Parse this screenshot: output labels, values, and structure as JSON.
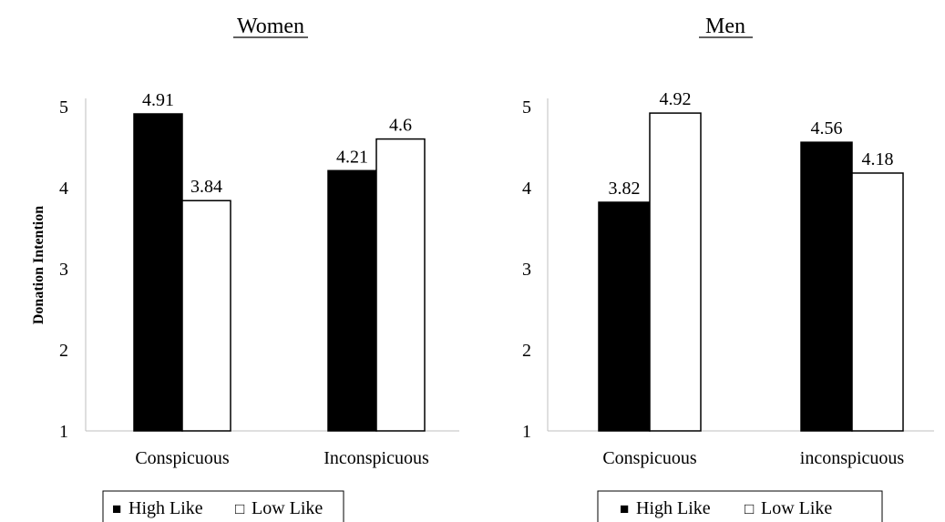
{
  "shared": {
    "ylabel": "Donation Intention",
    "legend": [
      {
        "label": "High Like",
        "symbol": "■",
        "color": "#000000"
      },
      {
        "label": "Low Like",
        "symbol": "□",
        "color": "#ffffff"
      }
    ],
    "yticks": [
      "1",
      "2",
      "3",
      "4",
      "5"
    ]
  },
  "chart_data": [
    {
      "type": "bar",
      "title": "Women",
      "ylabel": "Donation Intention",
      "categories": [
        "Conspicuous",
        "Inconspicuous"
      ],
      "series": [
        {
          "name": "High Like",
          "values": [
            4.91,
            4.21
          ],
          "labels": [
            "4.91",
            "4.21"
          ],
          "color": "#000000"
        },
        {
          "name": "Low Like",
          "values": [
            3.84,
            4.6
          ],
          "labels": [
            "3.84",
            "4.6"
          ],
          "color": "#ffffff"
        }
      ],
      "ylim": [
        1,
        5
      ],
      "grid": false,
      "legend": "bottom"
    },
    {
      "type": "bar",
      "title": "Men",
      "ylabel": "",
      "categories": [
        "Conspicuous",
        "inconspicuous"
      ],
      "series": [
        {
          "name": "High Like",
          "values": [
            3.82,
            4.56
          ],
          "labels": [
            "3.82",
            "4.56"
          ],
          "color": "#000000"
        },
        {
          "name": "Low Like",
          "values": [
            4.92,
            4.18
          ],
          "labels": [
            "4.92",
            "4.18"
          ],
          "color": "#ffffff"
        }
      ],
      "ylim": [
        1,
        5
      ],
      "grid": false,
      "legend": "bottom"
    }
  ]
}
